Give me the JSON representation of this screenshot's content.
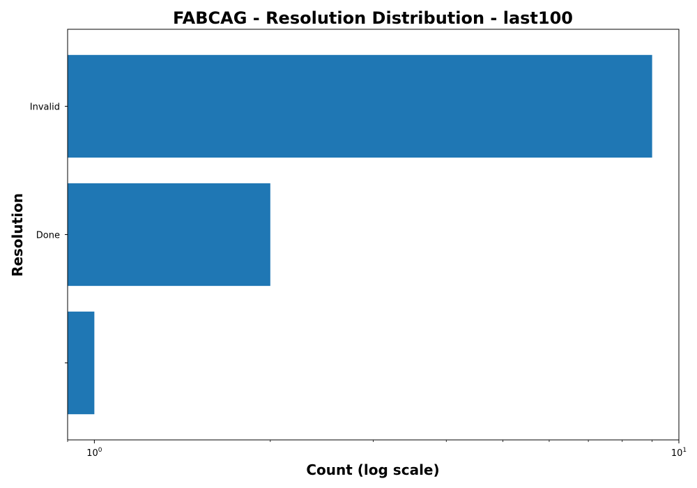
{
  "chart_data": {
    "type": "bar",
    "orientation": "horizontal",
    "title": "FABCAG - Resolution Distribution - last100",
    "xlabel": "Count (log scale)",
    "ylabel": "Resolution",
    "x_scale": "log",
    "xlim": [
      0.9,
      10
    ],
    "categories": [
      "Invalid",
      "Done",
      ""
    ],
    "values": [
      9,
      2,
      1
    ],
    "x_ticks": [
      {
        "value": 1,
        "base": "10",
        "exponent": "0"
      },
      {
        "value": 10,
        "base": "10",
        "exponent": "1"
      }
    ],
    "bar_color": "#1f77b4",
    "grid": false,
    "legend": "none"
  }
}
